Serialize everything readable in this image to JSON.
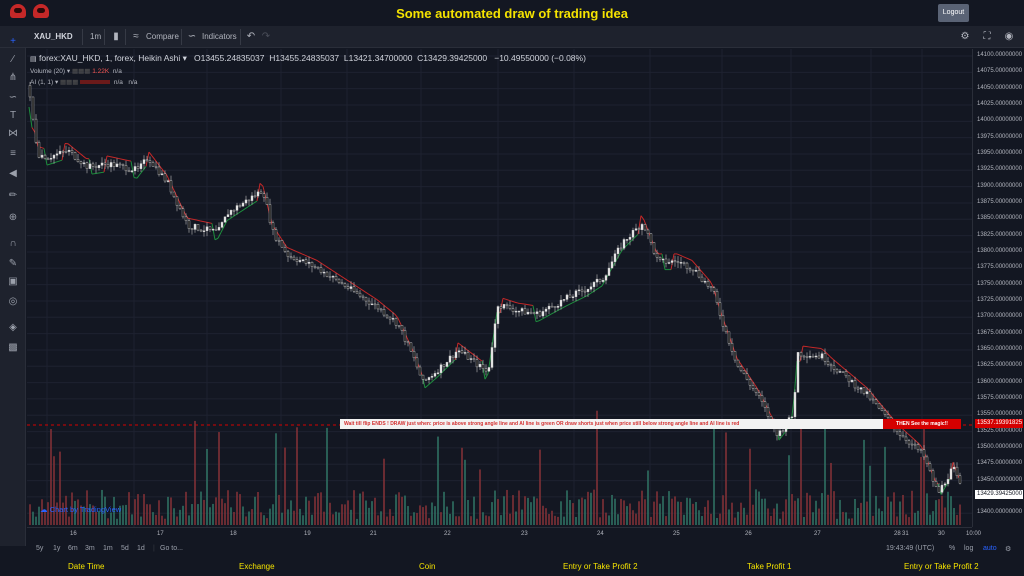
{
  "header": {
    "title": "Some automated draw of trading idea",
    "logout_label": "Logout"
  },
  "toolbar": {
    "symbol": "XAU_HKD",
    "interval": "1m",
    "compare_label": "Compare",
    "indicators_label": "Indicators"
  },
  "legend": {
    "main": "forex:XAU_HKD, 1, forex, Heikin Ashi",
    "open": "O13455.24835037",
    "high": "H13455.24835037",
    "low": "L13421.34700000",
    "close": "C13429.39425000",
    "change": "−10.49550000 (−0.08%)",
    "volume_label": "Volume (20)",
    "volume_value": "1.22K",
    "volume_na": "n/a",
    "ai_label": "AI (1, 1)",
    "ai_na1": "n/a",
    "ai_na2": "n/a"
  },
  "price_axis": {
    "labels": [
      "14100.00000000",
      "14075.00000000",
      "14050.00000000",
      "14025.00000000",
      "14000.00000000",
      "13975.00000000",
      "13950.00000000",
      "13925.00000000",
      "13900.00000000",
      "13875.00000000",
      "13850.00000000",
      "13825.00000000",
      "13800.00000000",
      "13775.00000000",
      "13750.00000000",
      "13725.00000000",
      "13700.00000000",
      "13675.00000000",
      "13650.00000000",
      "13625.00000000",
      "13600.00000000",
      "13575.00000000",
      "13550.00000000",
      "13525.00000000",
      "13500.00000000",
      "13475.00000000",
      "13450.00000000",
      "13425.00000000",
      "13400.00000000"
    ],
    "marker_red": "13537.19391825",
    "marker_last": "13429.39425000"
  },
  "time_axis": {
    "labels": [
      "16",
      "17",
      "18",
      "19",
      "21",
      "22",
      "23",
      "24",
      "25",
      "26",
      "27",
      "28",
      "30",
      "31",
      "10:00"
    ]
  },
  "bottom": {
    "ranges": [
      "5y",
      "1y",
      "6m",
      "3m",
      "1m",
      "5d",
      "1d"
    ],
    "goto": "Go to...",
    "clock": "19:43:49 (UTC)",
    "percent": "%",
    "log": "log",
    "auto": "auto"
  },
  "annotations": {
    "banner": "Wait till flip ENDS !   DRAW just when:  price is above strong angle line and AI line is green          OR          draw shorts just when price still below strong angle line and AI line is red",
    "banner_cta": "THEN See the magic!!"
  },
  "credit": "Chart by TradingView",
  "footer": {
    "columns": [
      "Date Time",
      "Exchange",
      "Coin",
      "Entry or Take Profit 2",
      "Take Profit 1",
      "Entry or Take Profit 2"
    ]
  },
  "colors": {
    "title": "#f5e300",
    "bull": "#26a69a",
    "bear": "#ef5350",
    "ai_green": "#1e8e3e",
    "ai_red": "#c62828",
    "accent": "#2962ff"
  },
  "icons": {
    "left_tools": [
      "crosshair-icon",
      "trendline-icon",
      "pitchfork-icon",
      "brush-icon",
      "text-icon",
      "pattern-icon",
      "fib-icon",
      "back-arrow-icon",
      "ruler-icon",
      "zoom-icon",
      "magnet-icon",
      "lock-drawing-icon",
      "lock-icon",
      "eye-icon",
      "layers-icon",
      "trash-icon"
    ]
  }
}
